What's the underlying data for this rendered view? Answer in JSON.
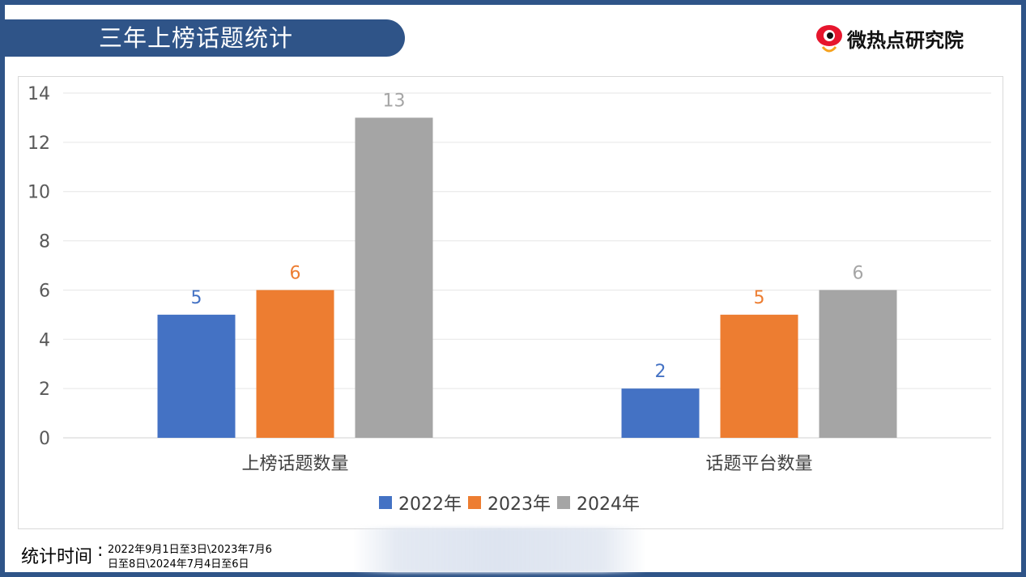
{
  "header": {
    "title": "三年上榜话题统计",
    "logo_text": "微热点研究院"
  },
  "colors": {
    "frame": "#2f5488",
    "series_2022": "#4472c4",
    "series_2023": "#ed7d31",
    "series_2024": "#a5a5a5"
  },
  "chart_data": {
    "type": "bar",
    "categories": [
      "上榜话题数量",
      "话题平台数量"
    ],
    "series": [
      {
        "name": "2022年",
        "values": [
          5,
          2
        ],
        "color": "#4472c4"
      },
      {
        "name": "2023年",
        "values": [
          6,
          5
        ],
        "color": "#ed7d31"
      },
      {
        "name": "2024年",
        "values": [
          13,
          6
        ],
        "color": "#a5a5a5"
      }
    ],
    "ylim": [
      0,
      14
    ],
    "yticks": [
      0,
      2,
      4,
      6,
      8,
      10,
      12,
      14
    ],
    "grid": true,
    "legend": "bottom",
    "data_labels": true
  },
  "footer": {
    "label": "统计时间",
    "colon": ":",
    "line1": "2022年9月1日至3日\\2023年7月6",
    "line2": "日至8日\\2024年7月4日至6日"
  }
}
